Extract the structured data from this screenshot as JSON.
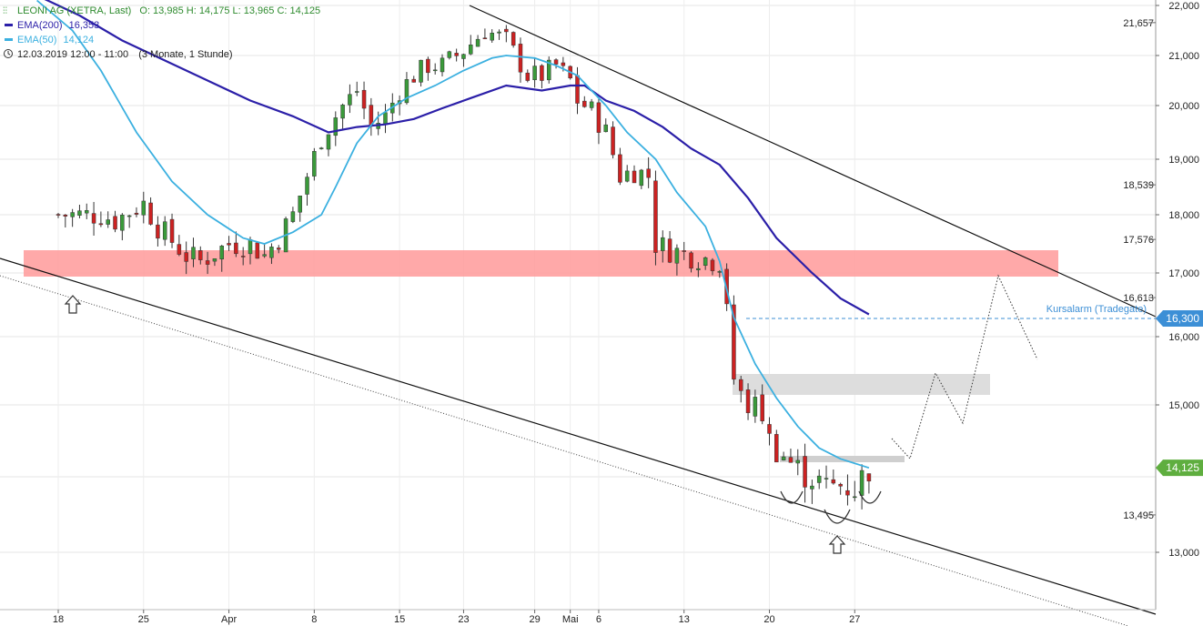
{
  "header": {
    "instrument": "LEONI AG (XETRA, Last)",
    "ohlc": "O: 13,985  H: 14,175  L: 13,965  C: 14,125",
    "ema200_label": "EMA(200)",
    "ema200_value": "16,353",
    "ema50_label": "EMA(50)",
    "ema50_value": "14,124",
    "timestamp": "12.03.2019 12:00 - 11:00",
    "range": "(3 Monate, 1 Stunde)"
  },
  "colors": {
    "ema200": "#2b1fa8",
    "ema50": "#3bb0e0",
    "up_candle": "#3a9a3a",
    "down_candle": "#cc2222",
    "resistance_zone": "#ff9a9a",
    "target_zone": "#dddddd",
    "last_price_badge": "#5fae3f",
    "alarm_badge": "#3c8fd6"
  },
  "chart_data": {
    "type": "candlestick",
    "x_labels": [
      "18",
      "25",
      "Apr",
      "8",
      "15",
      "23",
      "29",
      "Mai",
      "6",
      "13",
      "20",
      "27"
    ],
    "y_ticks": [
      "22,000",
      "21,000",
      "20,000",
      "19,000",
      "18,000",
      "17,000",
      "16,000",
      "15,000",
      "13,000"
    ],
    "ylim": [
      12.6,
      22.1
    ],
    "last_price": "14,125",
    "alarm_price": "16,300",
    "alarm_label": "Kursalarm (Tradegate)",
    "price_markers": [
      "21,657",
      "18,539",
      "17,576",
      "16,613",
      "13,495"
    ],
    "grid": true,
    "close_path": [
      [
        0,
        18.0
      ],
      [
        6,
        18.0
      ],
      [
        8,
        17.9
      ],
      [
        12,
        18.2
      ],
      [
        14,
        17.8
      ],
      [
        18,
        17.3
      ],
      [
        20,
        17.2
      ],
      [
        24,
        17.5
      ],
      [
        27,
        17.5
      ],
      [
        29,
        17.3
      ],
      [
        31,
        17.6
      ],
      [
        33,
        18.0
      ],
      [
        35,
        18.7
      ],
      [
        37,
        19.4
      ],
      [
        40,
        20.0
      ],
      [
        42,
        20.3
      ],
      [
        44,
        19.6
      ],
      [
        46,
        19.8
      ],
      [
        48,
        20.3
      ],
      [
        50,
        20.6
      ],
      [
        52,
        20.8
      ],
      [
        54,
        20.8
      ],
      [
        57,
        21.1
      ],
      [
        60,
        21.5
      ],
      [
        63,
        21.3
      ],
      [
        66,
        20.6
      ],
      [
        68,
        20.6
      ],
      [
        70,
        20.8
      ],
      [
        72,
        20.5
      ],
      [
        73,
        20.1
      ],
      [
        75,
        19.9
      ],
      [
        77,
        19.5
      ],
      [
        79,
        18.7
      ],
      [
        81,
        18.8
      ],
      [
        83,
        18.7
      ],
      [
        84,
        17.5
      ],
      [
        86,
        17.4
      ],
      [
        89,
        17.3
      ],
      [
        93,
        17.2
      ],
      [
        94,
        16.6
      ],
      [
        95,
        15.2
      ],
      [
        97,
        15.0
      ],
      [
        99,
        14.9
      ],
      [
        100,
        14.5
      ],
      [
        102,
        14.3
      ],
      [
        104,
        14.1
      ],
      [
        106,
        14.0
      ],
      [
        108,
        13.85
      ],
      [
        110,
        13.9
      ],
      [
        112,
        13.85
      ],
      [
        114,
        14.125
      ]
    ],
    "ema200": [
      [
        -3,
        22.2
      ],
      [
        3,
        21.8
      ],
      [
        9,
        21.3
      ],
      [
        15,
        20.9
      ],
      [
        21,
        20.5
      ],
      [
        27,
        20.1
      ],
      [
        33,
        19.8
      ],
      [
        38,
        19.5
      ],
      [
        42,
        19.6
      ],
      [
        46,
        19.65
      ],
      [
        50,
        19.75
      ],
      [
        54,
        19.95
      ],
      [
        58,
        20.15
      ],
      [
        63,
        20.4
      ],
      [
        68,
        20.3
      ],
      [
        72,
        20.4
      ],
      [
        74,
        20.4
      ],
      [
        77,
        20.1
      ],
      [
        81,
        19.9
      ],
      [
        85,
        19.6
      ],
      [
        89,
        19.2
      ],
      [
        93,
        18.9
      ],
      [
        97,
        18.3
      ],
      [
        101,
        17.6
      ],
      [
        106,
        17.0
      ],
      [
        110,
        16.6
      ],
      [
        114,
        16.35
      ]
    ],
    "ema50": [
      [
        -3,
        22.1
      ],
      [
        2,
        21.5
      ],
      [
        6,
        20.7
      ],
      [
        11,
        19.5
      ],
      [
        16,
        18.6
      ],
      [
        21,
        18.0
      ],
      [
        26,
        17.6
      ],
      [
        29,
        17.5
      ],
      [
        33,
        17.7
      ],
      [
        37,
        18.0
      ],
      [
        39,
        18.5
      ],
      [
        42,
        19.3
      ],
      [
        45,
        19.8
      ],
      [
        49,
        20.15
      ],
      [
        53,
        20.4
      ],
      [
        57,
        20.7
      ],
      [
        61,
        20.95
      ],
      [
        63,
        21.0
      ],
      [
        67,
        20.95
      ],
      [
        70,
        20.8
      ],
      [
        73,
        20.6
      ],
      [
        75,
        20.3
      ],
      [
        77,
        20.0
      ],
      [
        80,
        19.5
      ],
      [
        84,
        19.0
      ],
      [
        87,
        18.4
      ],
      [
        91,
        17.8
      ],
      [
        93,
        17.2
      ],
      [
        95,
        16.3
      ],
      [
        98,
        15.6
      ],
      [
        101,
        15.1
      ],
      [
        104,
        14.7
      ],
      [
        107,
        14.4
      ],
      [
        110,
        14.25
      ],
      [
        114,
        14.124
      ]
    ]
  }
}
